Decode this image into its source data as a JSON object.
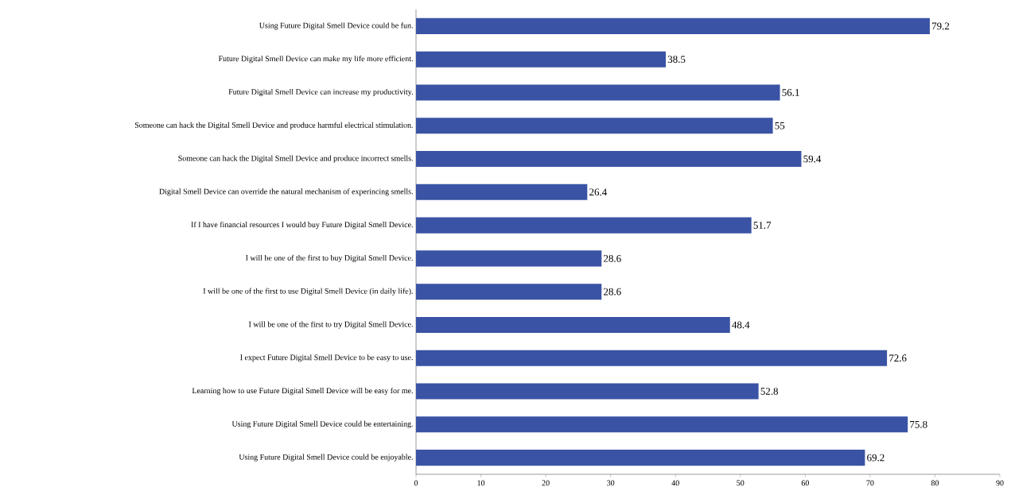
{
  "chart_data": {
    "type": "bar",
    "orientation": "horizontal",
    "categories": [
      "Using Future Digital Smell Device could be fun.",
      "Future Digital Smell Device can make my life more efficient.",
      "Future Digital Smell Device can increase my productivity.",
      "Someone can hack the Digital Smell Device and produce harmful electrical stimulation.",
      "Someone can hack the Digital Smell Device and produce incorrect smells.",
      "Digital Smell Device can override the natural mechanism of experincing smells.",
      "If I have financial resources I would buy Future Digital Smell Device.",
      "I will be one of the first to buy Digital Smell Device.",
      "I will be one of the first to use Digital Smell Device (in daily life).",
      "I will be one of the first to try Digital Smell Device.",
      "I expect Future Digital Smell Device to be easy to use.",
      "Learning how to use Future Digital Smell Device will be easy for me.",
      "Using Future Digital Smell Device could be entertaining.",
      "Using Future Digital Smell Device could be enjoyable."
    ],
    "values": [
      79.2,
      38.5,
      56.1,
      55,
      59.4,
      26.4,
      51.7,
      28.6,
      28.6,
      48.4,
      72.6,
      52.8,
      75.8,
      69.2
    ],
    "color": "#3a53a4",
    "data_labels": true,
    "xlim": [
      0,
      90
    ],
    "xticks": [
      0,
      10,
      20,
      30,
      40,
      50,
      60,
      70,
      80,
      90
    ]
  }
}
